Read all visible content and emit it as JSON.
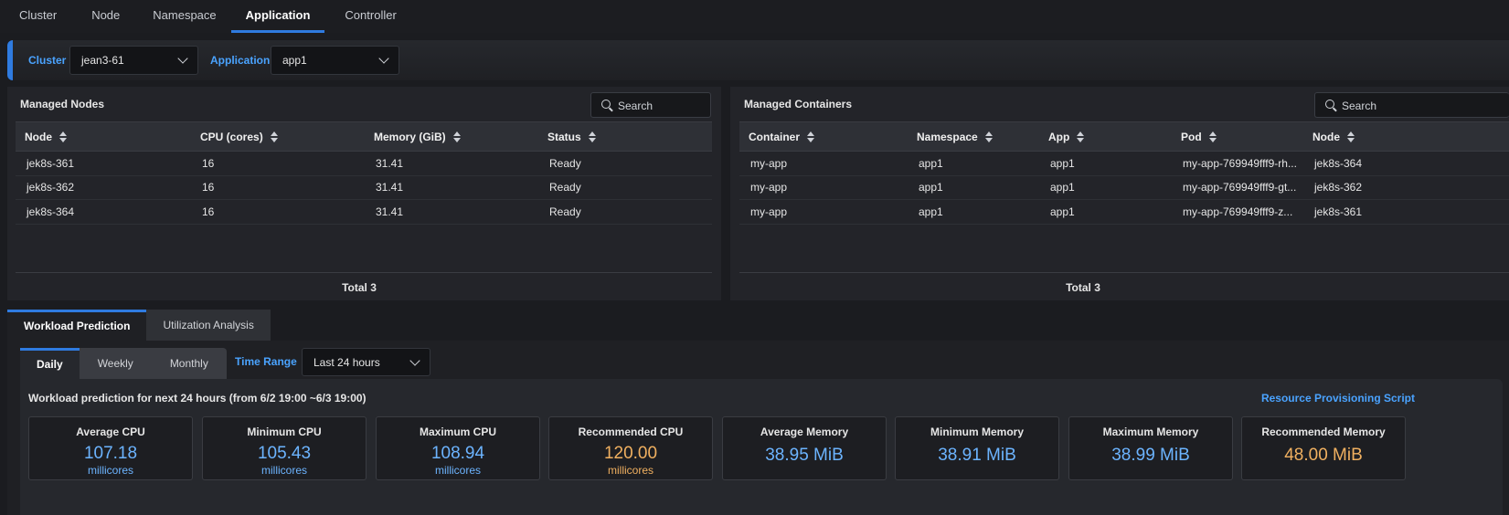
{
  "top_tabs": [
    "Cluster",
    "Node",
    "Namespace",
    "Application",
    "Controller"
  ],
  "active_top_tab": "Application",
  "filters": {
    "cluster_label": "Cluster",
    "cluster_value": "jean3-61",
    "application_label": "Application",
    "application_value": "app1"
  },
  "managed_nodes": {
    "title": "Managed Nodes",
    "search_placeholder": "Search",
    "columns": [
      "Node",
      "CPU (cores)",
      "Memory (GiB)",
      "Status"
    ],
    "rows": [
      [
        "jek8s-361",
        "16",
        "31.41",
        "Ready"
      ],
      [
        "jek8s-362",
        "16",
        "31.41",
        "Ready"
      ],
      [
        "jek8s-364",
        "16",
        "31.41",
        "Ready"
      ]
    ],
    "total": "Total 3"
  },
  "managed_containers": {
    "title": "Managed Containers",
    "search_placeholder": "Search",
    "columns": [
      "Container",
      "Namespace",
      "App",
      "Pod",
      "Node"
    ],
    "rows": [
      [
        "my-app",
        "app1",
        "app1",
        "my-app-769949fff9-rh...",
        "jek8s-364"
      ],
      [
        "my-app",
        "app1",
        "app1",
        "my-app-769949fff9-gt...",
        "jek8s-362"
      ],
      [
        "my-app",
        "app1",
        "app1",
        "my-app-769949fff9-z...",
        "jek8s-361"
      ]
    ],
    "total": "Total 3"
  },
  "lower_tabs": [
    "Workload Prediction",
    "Utilization Analysis"
  ],
  "period_tabs": [
    "Daily",
    "Weekly",
    "Monthly"
  ],
  "time_range": {
    "label": "Time Range",
    "value": "Last 24 hours"
  },
  "prediction_title": "Workload prediction for next 24 hours (from 6/2 19:00 ~6/3 19:00)",
  "script_link": "Resource Provisioning Script",
  "metrics": [
    {
      "label": "Average CPU",
      "value": "107.18",
      "unit": "millicores"
    },
    {
      "label": "Minimum CPU",
      "value": "105.43",
      "unit": "millicores"
    },
    {
      "label": "Maximum CPU",
      "value": "108.94",
      "unit": "millicores"
    },
    {
      "label": "Recommended CPU",
      "value": "120.00",
      "unit": "millicores"
    },
    {
      "label": "Average Memory",
      "value": "38.95 MiB",
      "unit": ""
    },
    {
      "label": "Minimum Memory",
      "value": "38.91 MiB",
      "unit": ""
    },
    {
      "label": "Maximum Memory",
      "value": "38.99 MiB",
      "unit": ""
    },
    {
      "label": "Recommended Memory",
      "value": "48.00 MiB",
      "unit": ""
    }
  ],
  "colors": {
    "accent": "#2f7be0",
    "value_blue": "#6cb4ff",
    "value_orange": "#f0b060"
  }
}
